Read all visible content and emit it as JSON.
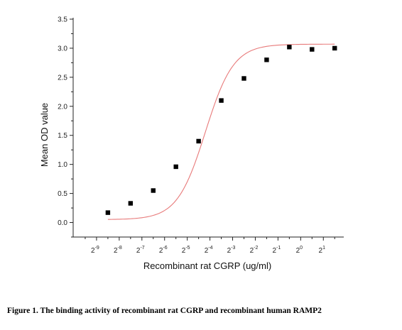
{
  "caption": "Figure 1. The binding activity of recombinant rat CGRP and recombinant human RAMP2",
  "chart_data": {
    "type": "scatter",
    "xlabel": "Recombinant rat CGRP (ug/ml)",
    "ylabel": "Mean OD value",
    "x_scale": "log2",
    "xlim_exponent": [
      -10,
      1.9
    ],
    "ylim": [
      -0.25,
      3.5
    ],
    "y_ticks": [
      "0.0",
      "0.5",
      "1.0",
      "1.5",
      "2.0",
      "2.5",
      "3.0",
      "3.5"
    ],
    "x_ticks": [
      {
        "base": "2",
        "exp": "-9"
      },
      {
        "base": "2",
        "exp": "-8"
      },
      {
        "base": "2",
        "exp": "-7"
      },
      {
        "base": "2",
        "exp": "-6"
      },
      {
        "base": "2",
        "exp": "-5"
      },
      {
        "base": "2",
        "exp": "-4"
      },
      {
        "base": "2",
        "exp": "-3"
      },
      {
        "base": "2",
        "exp": "-2"
      },
      {
        "base": "2",
        "exp": "-1"
      },
      {
        "base": "2",
        "exp": "0"
      },
      {
        "base": "2",
        "exp": "1"
      }
    ],
    "series": [
      {
        "marker": "square",
        "color": "#000000",
        "x_exponent": [
          -8.5,
          -7.5,
          -6.5,
          -5.5,
          -4.5,
          -3.5,
          -2.5,
          -1.5,
          -0.5,
          0.5,
          1.5
        ],
        "y": [
          0.17,
          0.33,
          0.55,
          0.96,
          1.4,
          2.1,
          2.48,
          2.8,
          3.02,
          2.98,
          3.0
        ]
      }
    ],
    "fit": {
      "type": "four-parameter logistic",
      "color": "#e87a7a",
      "bottom": 0.05,
      "top": 3.07,
      "midpoint_exponent": -4.2,
      "slope": 0.62,
      "x_exponent_range": [
        -8.5,
        1.5
      ]
    }
  }
}
